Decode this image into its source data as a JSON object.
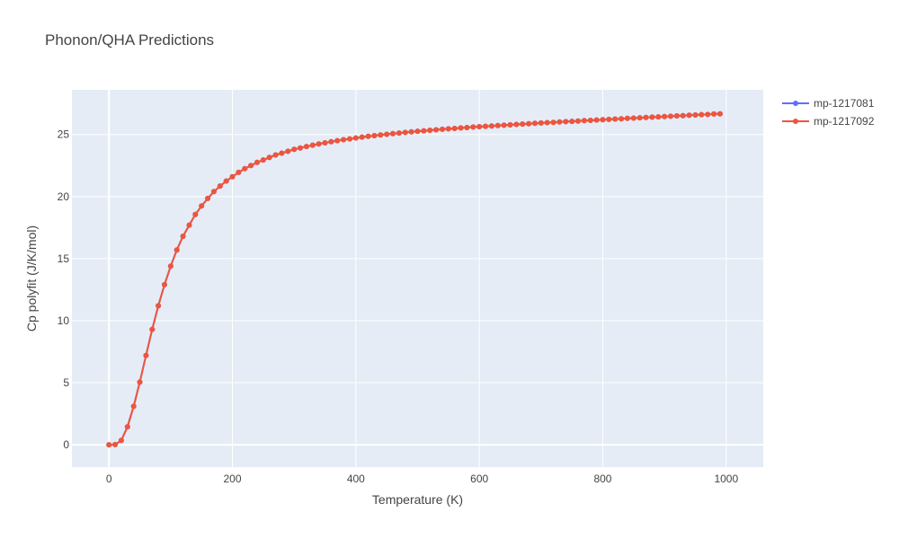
{
  "chart_data": {
    "type": "line",
    "title": "Phonon/QHA Predictions",
    "xlabel": "Temperature (K)",
    "ylabel": "Cp polyfit (J/K/mol)",
    "xlim": [
      -60,
      1060
    ],
    "ylim": [
      -1.8,
      28.6
    ],
    "xticks": [
      0,
      200,
      400,
      600,
      800,
      1000
    ],
    "yticks": [
      0,
      5,
      10,
      15,
      20,
      25
    ],
    "grid": true,
    "legend_position": "top-right",
    "x": [
      0,
      10,
      20,
      30,
      40,
      50,
      60,
      70,
      80,
      90,
      100,
      110,
      120,
      130,
      140,
      150,
      160,
      170,
      180,
      190,
      200,
      210,
      220,
      230,
      240,
      250,
      260,
      270,
      280,
      290,
      300,
      310,
      320,
      330,
      340,
      350,
      360,
      370,
      380,
      390,
      400,
      410,
      420,
      430,
      440,
      450,
      460,
      470,
      480,
      490,
      500,
      510,
      520,
      530,
      540,
      550,
      560,
      570,
      580,
      590,
      600,
      610,
      620,
      630,
      640,
      650,
      660,
      670,
      680,
      690,
      700,
      710,
      720,
      730,
      740,
      750,
      760,
      770,
      780,
      790,
      800,
      810,
      820,
      830,
      840,
      850,
      860,
      870,
      880,
      890,
      900,
      910,
      920,
      930,
      940,
      950,
      960,
      970,
      980,
      990
    ],
    "series": [
      {
        "name": "mp-1217081",
        "color": "#636efa",
        "values": [
          0,
          0.02,
          0.35,
          1.45,
          3.1,
          5.05,
          7.2,
          9.3,
          11.2,
          12.9,
          14.4,
          15.7,
          16.8,
          17.7,
          18.55,
          19.25,
          19.85,
          20.4,
          20.85,
          21.25,
          21.6,
          21.95,
          22.25,
          22.5,
          22.75,
          22.95,
          23.15,
          23.35,
          23.5,
          23.65,
          23.8,
          23.92,
          24.03,
          24.14,
          24.24,
          24.33,
          24.42,
          24.5,
          24.58,
          24.65,
          24.72,
          24.79,
          24.85,
          24.91,
          24.97,
          25.02,
          25.07,
          25.12,
          25.17,
          25.21,
          25.26,
          25.3,
          25.34,
          25.38,
          25.42,
          25.46,
          25.49,
          25.53,
          25.56,
          25.6,
          25.63,
          25.66,
          25.69,
          25.72,
          25.75,
          25.78,
          25.81,
          25.84,
          25.87,
          25.9,
          25.93,
          25.96,
          25.98,
          26.01,
          26.04,
          26.06,
          26.09,
          26.12,
          26.14,
          26.17,
          26.2,
          26.22,
          26.25,
          26.27,
          26.3,
          26.32,
          26.35,
          26.37,
          26.4,
          26.42,
          26.45,
          26.47,
          26.5,
          26.52,
          26.55,
          26.57,
          26.6,
          26.62,
          26.65,
          26.67
        ]
      },
      {
        "name": "mp-1217092",
        "color": "#ef553b",
        "values": [
          0,
          0.02,
          0.35,
          1.45,
          3.1,
          5.05,
          7.2,
          9.3,
          11.2,
          12.9,
          14.4,
          15.7,
          16.8,
          17.7,
          18.55,
          19.25,
          19.85,
          20.4,
          20.85,
          21.25,
          21.6,
          21.95,
          22.25,
          22.5,
          22.75,
          22.95,
          23.15,
          23.35,
          23.5,
          23.65,
          23.8,
          23.92,
          24.03,
          24.14,
          24.24,
          24.33,
          24.42,
          24.5,
          24.58,
          24.65,
          24.72,
          24.79,
          24.85,
          24.91,
          24.97,
          25.02,
          25.07,
          25.12,
          25.17,
          25.21,
          25.26,
          25.3,
          25.34,
          25.38,
          25.42,
          25.46,
          25.49,
          25.53,
          25.56,
          25.6,
          25.63,
          25.66,
          25.69,
          25.72,
          25.75,
          25.78,
          25.81,
          25.84,
          25.87,
          25.9,
          25.93,
          25.96,
          25.98,
          26.01,
          26.04,
          26.06,
          26.09,
          26.12,
          26.14,
          26.17,
          26.2,
          26.22,
          26.25,
          26.27,
          26.3,
          26.32,
          26.35,
          26.37,
          26.4,
          26.42,
          26.45,
          26.47,
          26.5,
          26.52,
          26.55,
          26.57,
          26.6,
          26.62,
          26.65,
          26.67
        ]
      }
    ]
  }
}
